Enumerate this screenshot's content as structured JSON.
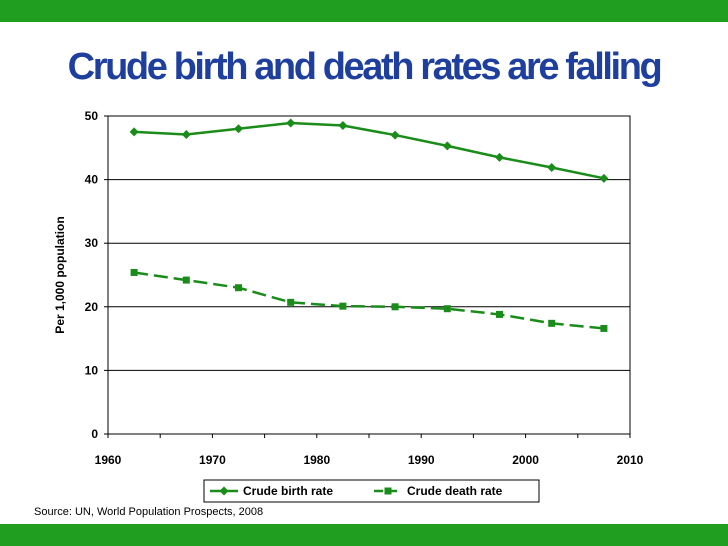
{
  "title": "Crude birth and death rates are falling",
  "source": "Source: UN, World Population Prospects, 2008",
  "chart_data": {
    "type": "line",
    "title": "Crude birth and death rates are falling",
    "ylabel": "Per 1,000 population",
    "xlabel": "",
    "xlim": [
      1960,
      2010
    ],
    "ylim": [
      0,
      50
    ],
    "x_ticks": [
      "1960",
      "1970",
      "1980",
      "1990",
      "2000",
      "2010"
    ],
    "y_ticks": [
      "0",
      "10",
      "20",
      "30",
      "40",
      "50"
    ],
    "grid": "horizontal",
    "legend_position": "bottom",
    "x": [
      1962.5,
      1967.5,
      1972.5,
      1977.5,
      1982.5,
      1987.5,
      1992.5,
      1997.5,
      2002.5,
      2007.5
    ],
    "series": [
      {
        "name": "Crude birth rate",
        "color": "#1a8c1a",
        "marker": "diamond",
        "line_style": "solid",
        "values": [
          47.5,
          47.1,
          48.0,
          48.9,
          48.5,
          47.0,
          45.3,
          43.5,
          41.9,
          40.2
        ]
      },
      {
        "name": "Crude death rate",
        "color": "#1a8c1a",
        "marker": "square",
        "line_style": "dashed",
        "values": [
          25.4,
          24.2,
          23.0,
          20.7,
          20.1,
          20.0,
          19.7,
          18.8,
          17.4,
          16.6
        ]
      }
    ]
  }
}
